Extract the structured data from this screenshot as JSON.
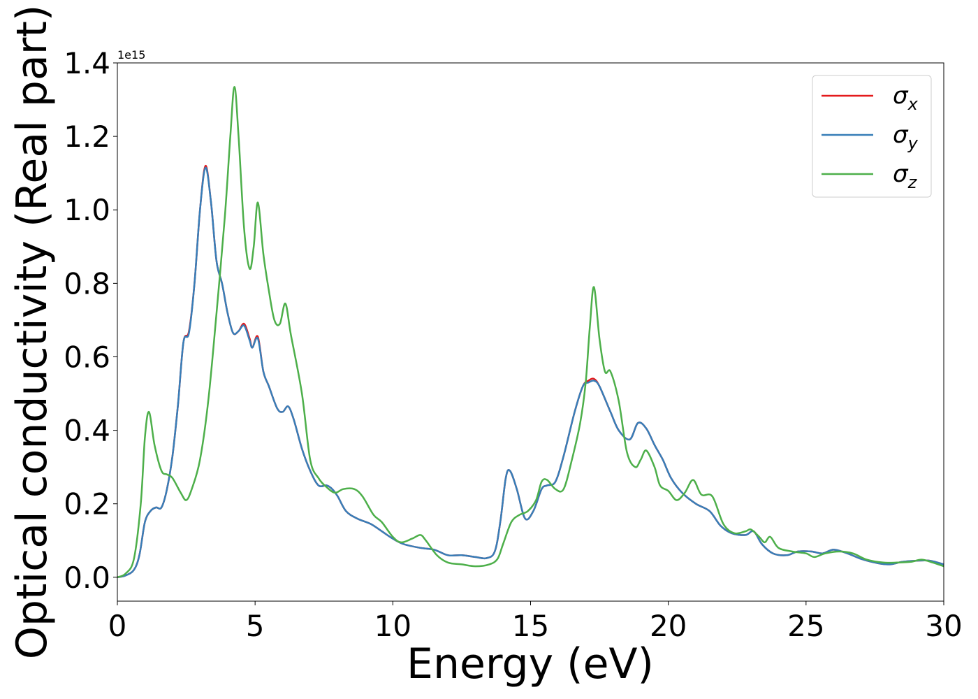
{
  "chart_data": {
    "type": "line",
    "xlabel": "Energy (eV)",
    "ylabel": "Optical conductivity (Real part)",
    "offset_text": "1e15",
    "xlim": [
      0,
      30
    ],
    "ylim": [
      -0.065,
      1.4
    ],
    "x_ticks": [
      0,
      5,
      10,
      15,
      20,
      25,
      30
    ],
    "x_tick_labels": [
      "0",
      "5",
      "10",
      "15",
      "20",
      "25",
      "30"
    ],
    "y_ticks": [
      0.0,
      0.2,
      0.4,
      0.6,
      0.8,
      1.0,
      1.2,
      1.4
    ],
    "y_tick_labels": [
      "0.0",
      "0.2",
      "0.4",
      "0.6",
      "0.8",
      "1.0",
      "1.2",
      "1.4"
    ],
    "legend_position": "top-right",
    "grid": false,
    "series": [
      {
        "name": "σx",
        "legend_base": "σ",
        "legend_sub": "x",
        "color": "#e41a1c",
        "points": [
          [
            0,
            0
          ],
          [
            0.3,
            0.005
          ],
          [
            0.6,
            0.02
          ],
          [
            0.8,
            0.06
          ],
          [
            1.0,
            0.15
          ],
          [
            1.2,
            0.18
          ],
          [
            1.4,
            0.19
          ],
          [
            1.6,
            0.19
          ],
          [
            1.8,
            0.24
          ],
          [
            2.0,
            0.33
          ],
          [
            2.2,
            0.47
          ],
          [
            2.4,
            0.64
          ],
          [
            2.6,
            0.67
          ],
          [
            2.8,
            0.8
          ],
          [
            3.0,
            1.0
          ],
          [
            3.2,
            1.12
          ],
          [
            3.4,
            1.02
          ],
          [
            3.6,
            0.86
          ],
          [
            3.8,
            0.8
          ],
          [
            4.0,
            0.72
          ],
          [
            4.2,
            0.665
          ],
          [
            4.4,
            0.67
          ],
          [
            4.6,
            0.69
          ],
          [
            4.8,
            0.65
          ],
          [
            4.9,
            0.625
          ],
          [
            5.1,
            0.655
          ],
          [
            5.3,
            0.56
          ],
          [
            5.5,
            0.52
          ],
          [
            5.8,
            0.46
          ],
          [
            6.0,
            0.45
          ],
          [
            6.2,
            0.465
          ],
          [
            6.4,
            0.43
          ],
          [
            6.7,
            0.35
          ],
          [
            7.0,
            0.29
          ],
          [
            7.3,
            0.25
          ],
          [
            7.6,
            0.25
          ],
          [
            7.8,
            0.24
          ],
          [
            8.0,
            0.22
          ],
          [
            8.3,
            0.18
          ],
          [
            8.7,
            0.16
          ],
          [
            9.2,
            0.145
          ],
          [
            9.6,
            0.125
          ],
          [
            10.0,
            0.105
          ],
          [
            10.4,
            0.09
          ],
          [
            11.0,
            0.08
          ],
          [
            11.5,
            0.075
          ],
          [
            12.0,
            0.06
          ],
          [
            12.5,
            0.06
          ],
          [
            13.0,
            0.055
          ],
          [
            13.4,
            0.052
          ],
          [
            13.7,
            0.07
          ],
          [
            13.9,
            0.15
          ],
          [
            14.1,
            0.27
          ],
          [
            14.25,
            0.29
          ],
          [
            14.5,
            0.24
          ],
          [
            14.8,
            0.16
          ],
          [
            15.1,
            0.18
          ],
          [
            15.4,
            0.24
          ],
          [
            15.6,
            0.25
          ],
          [
            15.9,
            0.26
          ],
          [
            16.2,
            0.33
          ],
          [
            16.6,
            0.45
          ],
          [
            16.9,
            0.52
          ],
          [
            17.1,
            0.535
          ],
          [
            17.3,
            0.54
          ],
          [
            17.5,
            0.52
          ],
          [
            17.9,
            0.45
          ],
          [
            18.2,
            0.4
          ],
          [
            18.6,
            0.375
          ],
          [
            18.9,
            0.42
          ],
          [
            19.2,
            0.405
          ],
          [
            19.5,
            0.36
          ],
          [
            19.8,
            0.32
          ],
          [
            20.1,
            0.27
          ],
          [
            20.5,
            0.23
          ],
          [
            21.0,
            0.2
          ],
          [
            21.5,
            0.18
          ],
          [
            21.9,
            0.14
          ],
          [
            22.3,
            0.12
          ],
          [
            22.8,
            0.115
          ],
          [
            23.1,
            0.125
          ],
          [
            23.4,
            0.09
          ],
          [
            23.8,
            0.065
          ],
          [
            24.3,
            0.06
          ],
          [
            24.7,
            0.07
          ],
          [
            25.2,
            0.07
          ],
          [
            25.6,
            0.065
          ],
          [
            26.0,
            0.075
          ],
          [
            26.5,
            0.065
          ],
          [
            27.0,
            0.05
          ],
          [
            27.5,
            0.04
          ],
          [
            28.0,
            0.035
          ],
          [
            28.5,
            0.042
          ],
          [
            29.0,
            0.045
          ],
          [
            29.5,
            0.045
          ],
          [
            30.0,
            0.035
          ]
        ]
      },
      {
        "name": "σy",
        "legend_base": "σ",
        "legend_sub": "y",
        "color": "#377eb8",
        "points": [
          [
            0,
            0
          ],
          [
            0.3,
            0.005
          ],
          [
            0.6,
            0.02
          ],
          [
            0.8,
            0.06
          ],
          [
            1.0,
            0.15
          ],
          [
            1.2,
            0.18
          ],
          [
            1.4,
            0.19
          ],
          [
            1.6,
            0.19
          ],
          [
            1.8,
            0.24
          ],
          [
            2.0,
            0.33
          ],
          [
            2.2,
            0.47
          ],
          [
            2.4,
            0.64
          ],
          [
            2.6,
            0.665
          ],
          [
            2.8,
            0.8
          ],
          [
            3.0,
            1.0
          ],
          [
            3.2,
            1.115
          ],
          [
            3.4,
            1.02
          ],
          [
            3.6,
            0.86
          ],
          [
            3.8,
            0.8
          ],
          [
            4.0,
            0.72
          ],
          [
            4.2,
            0.665
          ],
          [
            4.4,
            0.67
          ],
          [
            4.6,
            0.685
          ],
          [
            4.8,
            0.645
          ],
          [
            4.9,
            0.625
          ],
          [
            5.1,
            0.65
          ],
          [
            5.3,
            0.56
          ],
          [
            5.5,
            0.52
          ],
          [
            5.8,
            0.46
          ],
          [
            6.0,
            0.45
          ],
          [
            6.2,
            0.465
          ],
          [
            6.4,
            0.43
          ],
          [
            6.7,
            0.35
          ],
          [
            7.0,
            0.29
          ],
          [
            7.3,
            0.25
          ],
          [
            7.6,
            0.25
          ],
          [
            7.8,
            0.24
          ],
          [
            8.0,
            0.22
          ],
          [
            8.3,
            0.18
          ],
          [
            8.7,
            0.16
          ],
          [
            9.2,
            0.145
          ],
          [
            9.6,
            0.125
          ],
          [
            10.0,
            0.105
          ],
          [
            10.4,
            0.09
          ],
          [
            11.0,
            0.08
          ],
          [
            11.5,
            0.075
          ],
          [
            12.0,
            0.06
          ],
          [
            12.5,
            0.06
          ],
          [
            13.0,
            0.055
          ],
          [
            13.4,
            0.052
          ],
          [
            13.7,
            0.07
          ],
          [
            13.9,
            0.15
          ],
          [
            14.1,
            0.27
          ],
          [
            14.25,
            0.29
          ],
          [
            14.5,
            0.24
          ],
          [
            14.8,
            0.16
          ],
          [
            15.1,
            0.18
          ],
          [
            15.4,
            0.24
          ],
          [
            15.6,
            0.25
          ],
          [
            15.9,
            0.26
          ],
          [
            16.2,
            0.33
          ],
          [
            16.6,
            0.45
          ],
          [
            16.9,
            0.52
          ],
          [
            17.1,
            0.53
          ],
          [
            17.3,
            0.535
          ],
          [
            17.5,
            0.52
          ],
          [
            17.9,
            0.45
          ],
          [
            18.2,
            0.4
          ],
          [
            18.6,
            0.375
          ],
          [
            18.9,
            0.42
          ],
          [
            19.2,
            0.405
          ],
          [
            19.5,
            0.36
          ],
          [
            19.8,
            0.32
          ],
          [
            20.1,
            0.27
          ],
          [
            20.5,
            0.23
          ],
          [
            21.0,
            0.2
          ],
          [
            21.5,
            0.18
          ],
          [
            21.9,
            0.14
          ],
          [
            22.3,
            0.12
          ],
          [
            22.8,
            0.115
          ],
          [
            23.1,
            0.125
          ],
          [
            23.4,
            0.09
          ],
          [
            23.8,
            0.065
          ],
          [
            24.3,
            0.06
          ],
          [
            24.7,
            0.07
          ],
          [
            25.2,
            0.07
          ],
          [
            25.6,
            0.065
          ],
          [
            26.0,
            0.075
          ],
          [
            26.5,
            0.065
          ],
          [
            27.0,
            0.05
          ],
          [
            27.5,
            0.04
          ],
          [
            28.0,
            0.035
          ],
          [
            28.5,
            0.042
          ],
          [
            29.0,
            0.045
          ],
          [
            29.5,
            0.045
          ],
          [
            30.0,
            0.035
          ]
        ]
      },
      {
        "name": "σz",
        "legend_base": "σ",
        "legend_sub": "z",
        "color": "#4daf4a",
        "points": [
          [
            0,
            0
          ],
          [
            0.3,
            0.01
          ],
          [
            0.6,
            0.05
          ],
          [
            0.85,
            0.2
          ],
          [
            1.0,
            0.38
          ],
          [
            1.15,
            0.45
          ],
          [
            1.35,
            0.36
          ],
          [
            1.6,
            0.29
          ],
          [
            1.8,
            0.28
          ],
          [
            2.0,
            0.27
          ],
          [
            2.3,
            0.23
          ],
          [
            2.5,
            0.21
          ],
          [
            2.7,
            0.24
          ],
          [
            3.0,
            0.32
          ],
          [
            3.3,
            0.48
          ],
          [
            3.6,
            0.72
          ],
          [
            3.9,
            0.98
          ],
          [
            4.1,
            1.2
          ],
          [
            4.25,
            1.335
          ],
          [
            4.4,
            1.2
          ],
          [
            4.6,
            0.95
          ],
          [
            4.8,
            0.84
          ],
          [
            4.95,
            0.9
          ],
          [
            5.1,
            1.02
          ],
          [
            5.3,
            0.88
          ],
          [
            5.5,
            0.78
          ],
          [
            5.7,
            0.7
          ],
          [
            5.9,
            0.69
          ],
          [
            6.1,
            0.745
          ],
          [
            6.3,
            0.66
          ],
          [
            6.7,
            0.5
          ],
          [
            7.0,
            0.32
          ],
          [
            7.3,
            0.27
          ],
          [
            7.6,
            0.245
          ],
          [
            7.9,
            0.23
          ],
          [
            8.2,
            0.24
          ],
          [
            8.6,
            0.24
          ],
          [
            8.9,
            0.22
          ],
          [
            9.3,
            0.17
          ],
          [
            9.6,
            0.15
          ],
          [
            10.0,
            0.11
          ],
          [
            10.3,
            0.095
          ],
          [
            10.7,
            0.105
          ],
          [
            11.0,
            0.115
          ],
          [
            11.2,
            0.1
          ],
          [
            11.6,
            0.06
          ],
          [
            12.0,
            0.04
          ],
          [
            12.5,
            0.035
          ],
          [
            13.0,
            0.03
          ],
          [
            13.5,
            0.035
          ],
          [
            13.8,
            0.05
          ],
          [
            14.0,
            0.09
          ],
          [
            14.3,
            0.15
          ],
          [
            14.6,
            0.17
          ],
          [
            14.9,
            0.18
          ],
          [
            15.2,
            0.21
          ],
          [
            15.4,
            0.26
          ],
          [
            15.6,
            0.265
          ],
          [
            15.9,
            0.24
          ],
          [
            16.2,
            0.24
          ],
          [
            16.5,
            0.32
          ],
          [
            16.8,
            0.42
          ],
          [
            17.0,
            0.53
          ],
          [
            17.15,
            0.68
          ],
          [
            17.3,
            0.79
          ],
          [
            17.5,
            0.65
          ],
          [
            17.7,
            0.56
          ],
          [
            17.9,
            0.56
          ],
          [
            18.2,
            0.48
          ],
          [
            18.5,
            0.34
          ],
          [
            18.8,
            0.3
          ],
          [
            19.0,
            0.32
          ],
          [
            19.2,
            0.345
          ],
          [
            19.5,
            0.3
          ],
          [
            19.7,
            0.25
          ],
          [
            20.0,
            0.235
          ],
          [
            20.3,
            0.21
          ],
          [
            20.6,
            0.23
          ],
          [
            20.9,
            0.265
          ],
          [
            21.2,
            0.225
          ],
          [
            21.6,
            0.22
          ],
          [
            22.0,
            0.145
          ],
          [
            22.4,
            0.12
          ],
          [
            22.8,
            0.125
          ],
          [
            23.0,
            0.13
          ],
          [
            23.3,
            0.11
          ],
          [
            23.5,
            0.095
          ],
          [
            23.7,
            0.11
          ],
          [
            24.0,
            0.08
          ],
          [
            24.5,
            0.07
          ],
          [
            25.0,
            0.065
          ],
          [
            25.3,
            0.055
          ],
          [
            25.7,
            0.065
          ],
          [
            26.2,
            0.07
          ],
          [
            26.7,
            0.065
          ],
          [
            27.2,
            0.048
          ],
          [
            27.8,
            0.04
          ],
          [
            28.3,
            0.04
          ],
          [
            28.8,
            0.042
          ],
          [
            29.2,
            0.048
          ],
          [
            29.6,
            0.04
          ],
          [
            30.0,
            0.03
          ]
        ]
      }
    ]
  }
}
